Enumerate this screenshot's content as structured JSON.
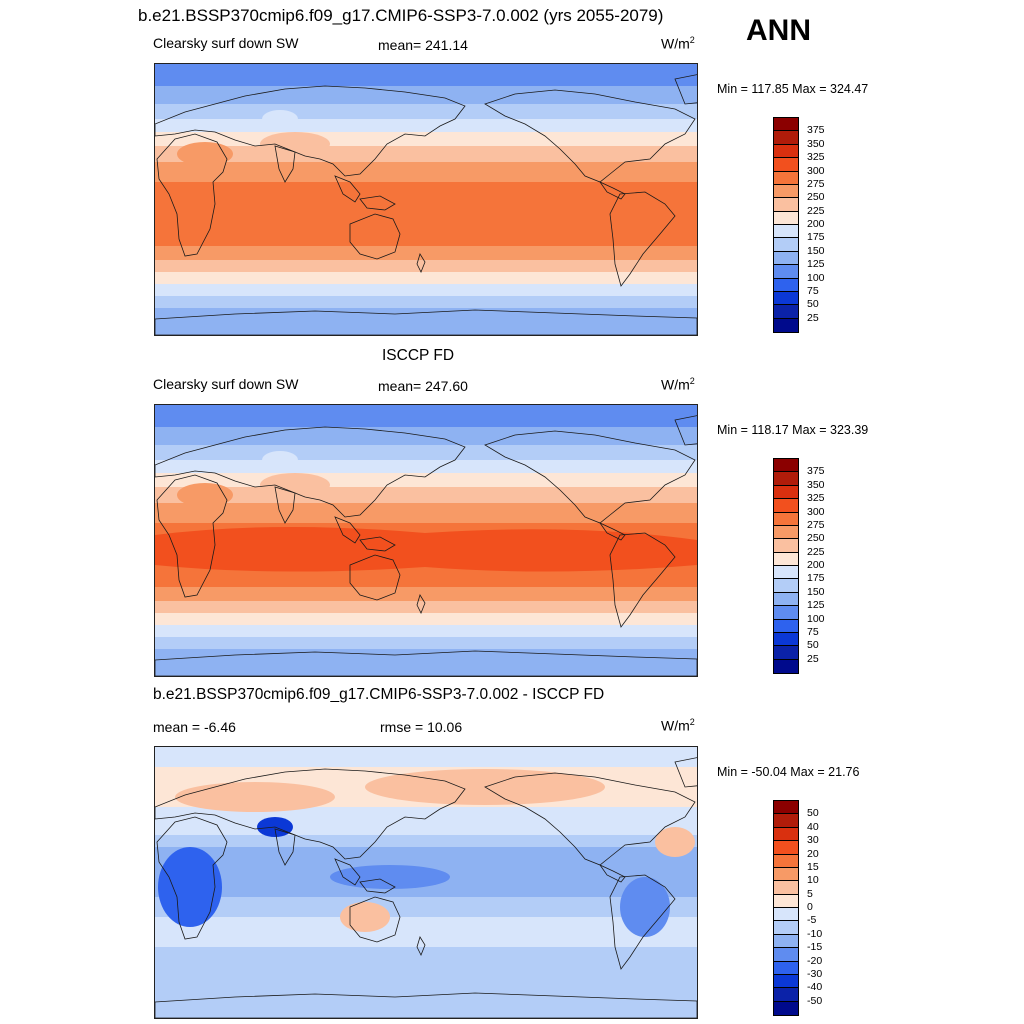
{
  "header": {
    "title": "b.e21.BSSP370cmip6.f09_g17.CMIP6-SSP3-7.0.002 (yrs 2055-2079)",
    "season": "ANN"
  },
  "panels": [
    {
      "id": "model",
      "title": "",
      "left_label": "Clearsky surf down SW",
      "center_label": "mean= 241.14",
      "unit": "W/m",
      "unit_sup": "2",
      "minmax": "Min = 117.85 Max = 324.47",
      "colorbar": [
        "375",
        "350",
        "325",
        "300",
        "275",
        "250",
        "225",
        "200",
        "175",
        "150",
        "125",
        "100",
        "75",
        "50",
        "25"
      ]
    },
    {
      "id": "obs",
      "title": "ISCCP FD",
      "left_label": "Clearsky surf down SW",
      "center_label": "mean= 247.60",
      "unit": "W/m",
      "unit_sup": "2",
      "minmax": "Min = 118.17 Max = 323.39",
      "colorbar": [
        "375",
        "350",
        "325",
        "300",
        "275",
        "250",
        "225",
        "200",
        "175",
        "150",
        "125",
        "100",
        "75",
        "50",
        "25"
      ]
    },
    {
      "id": "diff",
      "title": "b.e21.BSSP370cmip6.f09_g17.CMIP6-SSP3-7.0.002 - ISCCP FD",
      "left_label": "mean =  -6.46",
      "center_label": "rmse =  10.06",
      "unit": "W/m",
      "unit_sup": "2",
      "minmax": "Min = -50.04 Max =  21.76",
      "colorbar": [
        "50",
        "40",
        "30",
        "20",
        "15",
        "10",
        "5",
        "0",
        "-5",
        "-10",
        "-15",
        "-20",
        "-30",
        "-40",
        "-50"
      ]
    }
  ],
  "colors": {
    "scale": [
      "#8b0000",
      "#b01c0a",
      "#d9300f",
      "#f2501e",
      "#f5743a",
      "#f79a66",
      "#fac0a0",
      "#fde6d6",
      "#d7e5fb",
      "#b3cdf7",
      "#8eb2f2",
      "#5f8cf0",
      "#2e62ee",
      "#0b38d6",
      "#0b22a8",
      "#000a8c"
    ]
  }
}
